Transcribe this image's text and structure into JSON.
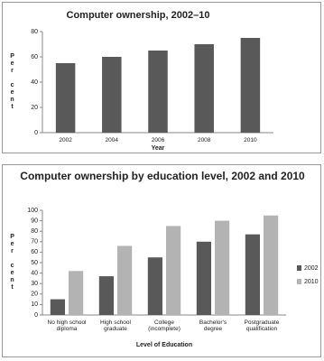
{
  "chart_data": [
    {
      "type": "bar",
      "title": "Computer ownership, 2002–10",
      "categories": [
        "2002",
        "2004",
        "2006",
        "2008",
        "2010"
      ],
      "values": [
        55,
        60,
        65,
        70,
        75
      ],
      "color": "#595959",
      "ylim": [
        0,
        80
      ],
      "yticks": [
        0,
        20,
        40,
        60,
        80
      ],
      "x_label": "Year",
      "y_label": "Per cent",
      "grid": false
    },
    {
      "type": "grouped_bar",
      "title": "Computer ownership by education level, 2002 and 2010",
      "categories": [
        "No high school diploma",
        "High school graduate",
        "College (incomplete)",
        "Bachelor's degree",
        "Postgraduate qualification"
      ],
      "series": [
        {
          "name": "2002",
          "color": "#595959",
          "values": [
            15,
            37,
            55,
            70,
            77
          ]
        },
        {
          "name": "2010",
          "color": "#b3b3b3",
          "values": [
            42,
            66,
            85,
            90,
            95
          ]
        }
      ],
      "ylim": [
        0,
        100
      ],
      "yticks": [
        0,
        10,
        20,
        30,
        40,
        50,
        60,
        70,
        80,
        90,
        100
      ],
      "x_label": "Level of Education",
      "y_label": "Per cent",
      "legend": "right",
      "grid": false
    }
  ]
}
